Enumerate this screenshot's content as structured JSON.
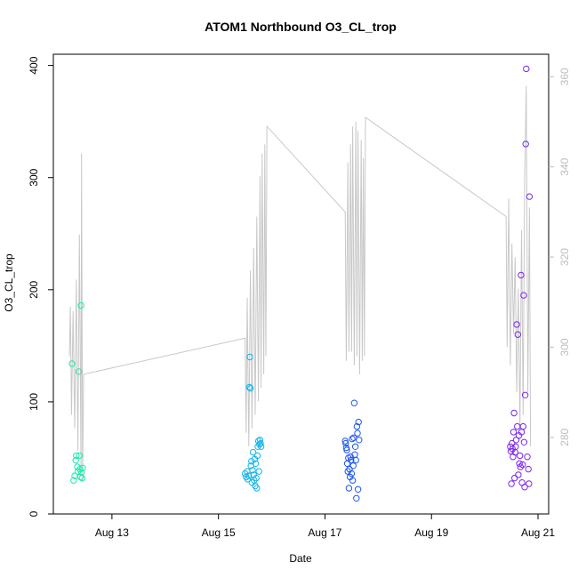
{
  "chart_data": {
    "type": "scatter",
    "title": "ATOM1 Northbound O3_CL_trop",
    "xlabel": "Date",
    "ylabel": "O3_CL_trop",
    "x_ticks": [
      "Aug 13",
      "Aug 15",
      "Aug 17",
      "Aug 19",
      "Aug 21"
    ],
    "x_tick_values": [
      13,
      15,
      17,
      19,
      21
    ],
    "xlim": [
      11.9,
      21.2
    ],
    "ylim": [
      0,
      410
    ],
    "y_ticks": [
      0,
      100,
      200,
      300,
      400
    ],
    "y2lim": [
      263,
      365
    ],
    "y2_ticks": [
      280,
      300,
      320,
      340,
      360
    ],
    "colors": {
      "axis": "#000000",
      "secondary_axis": "#bdbdbd",
      "line": "#c8c8c8"
    },
    "series": [
      {
        "color": "#1ee8b0",
        "points": [
          [
            12.25,
            134
          ],
          [
            12.28,
            30
          ],
          [
            12.3,
            34
          ],
          [
            12.32,
            48
          ],
          [
            12.33,
            52
          ],
          [
            12.35,
            42
          ],
          [
            12.36,
            38
          ],
          [
            12.38,
            127
          ],
          [
            12.39,
            52
          ],
          [
            12.4,
            40
          ],
          [
            12.41,
            33
          ],
          [
            12.42,
            186
          ],
          [
            12.43,
            37
          ],
          [
            12.44,
            32
          ],
          [
            12.45,
            41
          ]
        ]
      },
      {
        "color": "#12b4e8",
        "points": [
          [
            15.5,
            36
          ],
          [
            15.52,
            33
          ],
          [
            15.54,
            38
          ],
          [
            15.55,
            31
          ],
          [
            15.57,
            34
          ],
          [
            15.58,
            113
          ],
          [
            15.59,
            140
          ],
          [
            15.6,
            112
          ],
          [
            15.61,
            43
          ],
          [
            15.62,
            47
          ],
          [
            15.63,
            28
          ],
          [
            15.64,
            39
          ],
          [
            15.65,
            55
          ],
          [
            15.66,
            35
          ],
          [
            15.67,
            30
          ],
          [
            15.68,
            49
          ],
          [
            15.69,
            25
          ],
          [
            15.7,
            45
          ],
          [
            15.71,
            32
          ],
          [
            15.72,
            23
          ],
          [
            15.73,
            52
          ],
          [
            15.74,
            60
          ],
          [
            15.75,
            65
          ],
          [
            15.76,
            38
          ],
          [
            15.77,
            62
          ],
          [
            15.78,
            66
          ],
          [
            15.79,
            63
          ],
          [
            15.8,
            60
          ]
        ]
      },
      {
        "color": "#1e56ee",
        "points": [
          [
            17.38,
            65
          ],
          [
            17.39,
            63
          ],
          [
            17.4,
            59
          ],
          [
            17.41,
            57
          ],
          [
            17.42,
            45
          ],
          [
            17.43,
            38
          ],
          [
            17.44,
            50
          ],
          [
            17.45,
            23
          ],
          [
            17.46,
            40
          ],
          [
            17.47,
            33
          ],
          [
            17.48,
            51
          ],
          [
            17.49,
            48
          ],
          [
            17.5,
            36
          ],
          [
            17.51,
            67
          ],
          [
            17.52,
            30
          ],
          [
            17.53,
            43
          ],
          [
            17.54,
            68
          ],
          [
            17.55,
            99
          ],
          [
            17.56,
            53
          ],
          [
            17.57,
            60
          ],
          [
            17.58,
            48
          ],
          [
            17.59,
            14
          ],
          [
            17.6,
            78
          ],
          [
            17.61,
            72
          ],
          [
            17.62,
            22
          ],
          [
            17.63,
            82
          ],
          [
            17.64,
            66
          ]
        ]
      },
      {
        "color": "#7a28ee",
        "points": [
          [
            20.48,
            60
          ],
          [
            20.49,
            56
          ],
          [
            20.5,
            27
          ],
          [
            20.51,
            63
          ],
          [
            20.52,
            58
          ],
          [
            20.53,
            51
          ],
          [
            20.54,
            73
          ],
          [
            20.55,
            90
          ],
          [
            20.56,
            32
          ],
          [
            20.57,
            55
          ],
          [
            20.58,
            60
          ],
          [
            20.59,
            66
          ],
          [
            20.6,
            169
          ],
          [
            20.61,
            78
          ],
          [
            20.62,
            160
          ],
          [
            20.63,
            35
          ],
          [
            20.64,
            70
          ],
          [
            20.65,
            45
          ],
          [
            20.66,
            52
          ],
          [
            20.67,
            42
          ],
          [
            20.68,
            213
          ],
          [
            20.69,
            73
          ],
          [
            20.7,
            28
          ],
          [
            20.71,
            44
          ],
          [
            20.72,
            78
          ],
          [
            20.73,
            195
          ],
          [
            20.74,
            64
          ],
          [
            20.75,
            24
          ],
          [
            20.76,
            106
          ],
          [
            20.77,
            330
          ],
          [
            20.78,
            397
          ],
          [
            20.8,
            51
          ],
          [
            20.82,
            40
          ],
          [
            20.83,
            27
          ],
          [
            20.84,
            283
          ]
        ]
      }
    ],
    "line_series": {
      "axis": "secondary",
      "points": [
        [
          12.2,
          298
        ],
        [
          12.22,
          309
        ],
        [
          12.24,
          285
        ],
        [
          12.27,
          308
        ],
        [
          12.3,
          282
        ],
        [
          12.33,
          315
        ],
        [
          12.36,
          277
        ],
        [
          12.39,
          325
        ],
        [
          12.42,
          272
        ],
        [
          12.43,
          343
        ],
        [
          12.45,
          270
        ],
        [
          12.47,
          294
        ],
        [
          15.5,
          302
        ],
        [
          15.52,
          281
        ],
        [
          15.54,
          311
        ],
        [
          15.57,
          278
        ],
        [
          15.6,
          317
        ],
        [
          15.63,
          282
        ],
        [
          15.66,
          322
        ],
        [
          15.69,
          285
        ],
        [
          15.72,
          329
        ],
        [
          15.75,
          288
        ],
        [
          15.78,
          338
        ],
        [
          15.8,
          291
        ],
        [
          15.82,
          343
        ],
        [
          15.85,
          294
        ],
        [
          15.87,
          345
        ],
        [
          15.89,
          298
        ],
        [
          15.91,
          349
        ],
        [
          17.38,
          330
        ],
        [
          17.4,
          297
        ],
        [
          17.43,
          341
        ],
        [
          17.45,
          299
        ],
        [
          17.48,
          345
        ],
        [
          17.5,
          299
        ],
        [
          17.52,
          349
        ],
        [
          17.55,
          296
        ],
        [
          17.58,
          350
        ],
        [
          17.6,
          298
        ],
        [
          17.62,
          348
        ],
        [
          17.65,
          294
        ],
        [
          17.68,
          346
        ],
        [
          17.7,
          297
        ],
        [
          17.72,
          342
        ],
        [
          17.74,
          298
        ],
        [
          17.76,
          351
        ],
        [
          20.4,
          329
        ],
        [
          20.42,
          300
        ],
        [
          20.45,
          333
        ],
        [
          20.48,
          296
        ],
        [
          20.51,
          323
        ],
        [
          20.54,
          303
        ],
        [
          20.57,
          320
        ],
        [
          20.6,
          290
        ],
        [
          20.63,
          313
        ],
        [
          20.66,
          282
        ],
        [
          20.69,
          326
        ],
        [
          20.72,
          285
        ],
        [
          20.75,
          337
        ],
        [
          20.78,
          358
        ],
        [
          20.81,
          290
        ],
        [
          20.84,
          331
        ],
        [
          20.86,
          278
        ]
      ]
    }
  }
}
